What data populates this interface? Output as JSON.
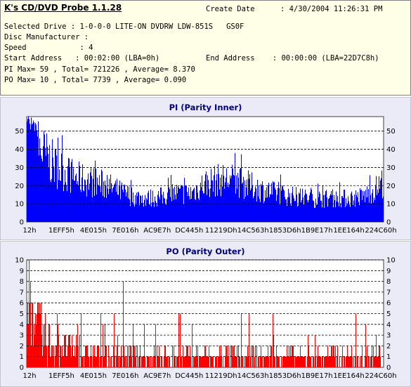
{
  "header": {
    "app_title": "K's CD/DVD Probe 1.1.28",
    "create_date_label": "Create Date",
    "create_date_value": ": 4/30/2004 11:26:31 PM",
    "selected_drive": "Selected Drive : 1-0-0-0 LITE-ON DVDRW LDW-851S   GS0F",
    "disc_manufacturer": "Disc Manufacturer :",
    "speed": "Speed            : 4",
    "start_address": "Start Address   : 00:02:00 (LBA=0h)",
    "end_address": "End Address    : 00:00:00 (LBA=22D7C8h)",
    "pi_summary": "PI Max= 59 , Total= 721226 , Average= 8.370",
    "po_summary": "PO Max= 10 , Total= 7739 , Average= 0.090"
  },
  "chart_data": [
    {
      "type": "bar",
      "title": "PI (Parity Inner)",
      "color": "#0000ff",
      "x_tick_labels": [
        "12h",
        "1EFF5h",
        "4E015h",
        "7E016h",
        "AC9E7h",
        "DC445h",
        "11219Dh",
        "14C563h",
        "1853D6h",
        "1B9E17h",
        "1EE164h",
        "224C60h"
      ],
      "y_ticks": [
        0,
        10,
        20,
        30,
        40,
        50
      ],
      "ylim": [
        0,
        58
      ],
      "grid": true,
      "profile": [
        [
          0,
          53
        ],
        [
          0.02,
          48
        ],
        [
          0.05,
          40
        ],
        [
          0.08,
          33
        ],
        [
          0.11,
          29
        ],
        [
          0.14,
          26
        ],
        [
          0.18,
          24
        ],
        [
          0.22,
          22
        ],
        [
          0.26,
          18
        ],
        [
          0.3,
          15
        ],
        [
          0.34,
          14
        ],
        [
          0.38,
          15
        ],
        [
          0.42,
          17
        ],
        [
          0.46,
          17
        ],
        [
          0.5,
          23
        ],
        [
          0.54,
          25
        ],
        [
          0.58,
          25
        ],
        [
          0.62,
          22
        ],
        [
          0.66,
          19
        ],
        [
          0.7,
          17
        ],
        [
          0.75,
          15
        ],
        [
          0.8,
          14
        ],
        [
          0.85,
          14
        ],
        [
          0.9,
          14
        ],
        [
          0.94,
          15
        ],
        [
          0.97,
          18
        ],
        [
          1,
          24
        ]
      ],
      "max": 59
    },
    {
      "type": "bar",
      "title": "PO (Parity Outer)",
      "color": "#ff0000",
      "x_tick_labels": [
        "12h",
        "1EFF5h",
        "4E015h",
        "7E016h",
        "AC9E7h",
        "DC445h",
        "11219Dh",
        "14C563h",
        "1853D6h",
        "1B9E17h",
        "1EE164h",
        "224C60h"
      ],
      "y_ticks": [
        0,
        1,
        2,
        3,
        4,
        5,
        6,
        7,
        8,
        9,
        10
      ],
      "ylim": [
        0,
        10
      ],
      "grid": true,
      "profile": [
        [
          0,
          5
        ],
        [
          0.04,
          3
        ],
        [
          0.1,
          2
        ],
        [
          0.2,
          1
        ],
        [
          0.3,
          1
        ],
        [
          0.4,
          1
        ],
        [
          0.5,
          1
        ],
        [
          0.6,
          1
        ],
        [
          0.7,
          1
        ],
        [
          0.8,
          1
        ],
        [
          0.9,
          1
        ],
        [
          1,
          1
        ]
      ],
      "spikes": [
        [
          0.005,
          10
        ],
        [
          0.01,
          8
        ],
        [
          0.015,
          6
        ],
        [
          0.27,
          8
        ],
        [
          0.33,
          4
        ],
        [
          0.36,
          4
        ],
        [
          0.98,
          3
        ]
      ],
      "max": 10
    }
  ]
}
